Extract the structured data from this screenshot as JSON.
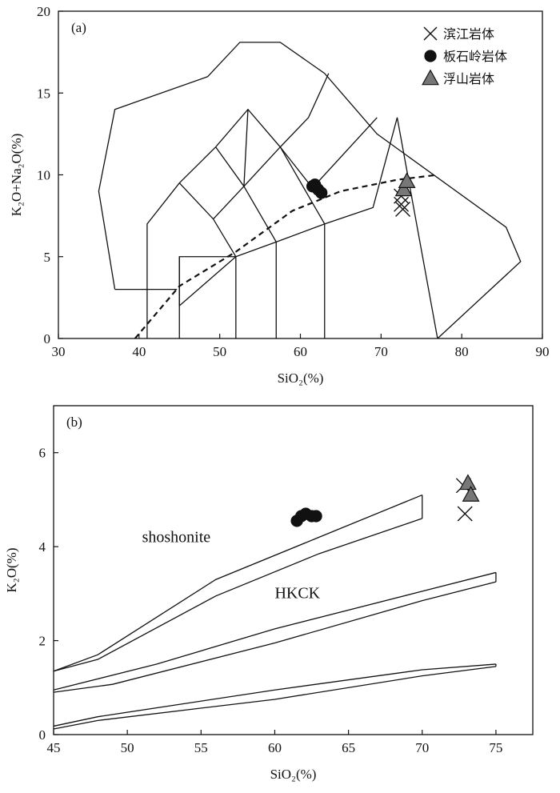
{
  "chart_data": [
    {
      "type": "scatter",
      "panel_label": "(a)",
      "xlabel": "SiO₂(%)",
      "ylabel": "K₂O+Na₂O(%)",
      "xlim": [
        30,
        90
      ],
      "ylim": [
        0,
        20
      ],
      "xticks": [
        30,
        40,
        50,
        60,
        70,
        80,
        90
      ],
      "yticks": [
        0,
        5,
        10,
        15,
        20
      ],
      "legend": {
        "placement": "top-right",
        "entries": [
          {
            "name": "滨江岩体",
            "marker": "cross"
          },
          {
            "name": "板石岭岩体",
            "marker": "circle"
          },
          {
            "name": "浮山岩体",
            "marker": "triangle"
          }
        ]
      },
      "series": [
        {
          "name": "滨江岩体",
          "marker": "cross",
          "points": [
            [
              72.5,
              8.7
            ],
            [
              72.5,
              8.2
            ],
            [
              72.7,
              7.9
            ]
          ]
        },
        {
          "name": "板石岭岩体",
          "marker": "circle",
          "points": [
            [
              61.5,
              9.3
            ],
            [
              61.8,
              9.4
            ],
            [
              62.2,
              9.1
            ],
            [
              62.6,
              8.9
            ]
          ]
        },
        {
          "name": "浮山岩体",
          "marker": "triangle",
          "points": [
            [
              72.8,
              9.1
            ],
            [
              73.2,
              9.6
            ]
          ]
        }
      ],
      "boundary_lines": [
        [
          [
            37,
            3
          ],
          [
            35,
            9
          ],
          [
            37,
            14
          ],
          [
            48.5,
            16
          ],
          [
            52.5,
            18.1
          ],
          [
            57.5,
            18.1
          ],
          [
            63,
            16.2
          ],
          [
            69.5,
            12.5
          ],
          [
            85.5,
            6.8
          ],
          [
            87.3,
            4.7
          ],
          [
            77,
            0
          ]
        ],
        [
          [
            44.7,
            3
          ],
          [
            37,
            3
          ]
        ],
        [
          [
            41,
            0
          ],
          [
            41,
            7
          ],
          [
            45,
            9.5
          ],
          [
            49.5,
            11.7
          ],
          [
            53.5,
            14
          ],
          [
            57.5,
            11.7
          ],
          [
            61,
            13.5
          ],
          [
            63.5,
            16.2
          ]
        ],
        [
          [
            45,
            0
          ],
          [
            45,
            5
          ],
          [
            52,
            5
          ],
          [
            57,
            5.9
          ],
          [
            63,
            7
          ],
          [
            69,
            8
          ],
          [
            72,
            13.5
          ],
          [
            77,
            0
          ]
        ],
        [
          [
            45,
            2
          ],
          [
            45,
            5
          ]
        ],
        [
          [
            52,
            0
          ],
          [
            52,
            5
          ],
          [
            49.2,
            7.3
          ],
          [
            45,
            9.5
          ]
        ],
        [
          [
            57,
            0
          ],
          [
            57,
            5.9
          ],
          [
            53,
            9.3
          ],
          [
            49.2,
            7.3
          ]
        ],
        [
          [
            63,
            0
          ],
          [
            63,
            7
          ],
          [
            57.5,
            11.7
          ],
          [
            53,
            9.3
          ],
          [
            49.5,
            11.7
          ]
        ],
        [
          [
            53.5,
            14
          ],
          [
            53,
            9.3
          ]
        ],
        [
          [
            57.5,
            11.7
          ],
          [
            61.5,
            9.2
          ],
          [
            69.5,
            13.5
          ]
        ],
        [
          [
            45,
            2
          ],
          [
            52,
            5
          ]
        ]
      ],
      "dashed_curve": [
        [
          39.5,
          0
        ],
        [
          45,
          3.2
        ],
        [
          52,
          5.3
        ],
        [
          59,
          7.8
        ],
        [
          65,
          9
        ],
        [
          72,
          9.7
        ],
        [
          77,
          10
        ]
      ]
    },
    {
      "type": "scatter",
      "panel_label": "(b)",
      "xlabel": "SiO₂(%)",
      "ylabel": "K₂O(%)",
      "xlim": [
        45,
        77.5
      ],
      "ylim": [
        0,
        7
      ],
      "xticks": [
        45,
        50,
        55,
        60,
        65,
        70,
        75
      ],
      "yticks": [
        0,
        2,
        4,
        6
      ],
      "region_labels": [
        {
          "text": "shoshonite",
          "x": 51,
          "y": 4.1
        },
        {
          "text": "HKCK",
          "x": 60,
          "y": 2.9
        }
      ],
      "series": [
        {
          "name": "滨江岩体",
          "marker": "cross",
          "points": [
            [
              72.8,
              5.3
            ],
            [
              72.9,
              4.7
            ]
          ]
        },
        {
          "name": "板石岭岩体",
          "marker": "circle",
          "points": [
            [
              61.5,
              4.55
            ],
            [
              61.8,
              4.65
            ],
            [
              62.1,
              4.7
            ],
            [
              62.5,
              4.65
            ],
            [
              62.8,
              4.65
            ]
          ]
        },
        {
          "name": "浮山岩体",
          "marker": "triangle",
          "points": [
            [
              73.1,
              5.35
            ],
            [
              73.3,
              5.1
            ]
          ]
        }
      ],
      "band_lines": [
        [
          [
            45,
            1.35
          ],
          [
            48,
            1.7
          ],
          [
            56,
            3.3
          ],
          [
            63,
            4.2
          ],
          [
            70,
            5.1
          ]
        ],
        [
          [
            45,
            1.35
          ],
          [
            48,
            1.6
          ],
          [
            56,
            2.95
          ],
          [
            63,
            3.85
          ],
          [
            70,
            4.6
          ]
        ],
        [
          [
            70,
            5.1
          ],
          [
            70,
            4.6
          ]
        ],
        [
          [
            45,
            0.95
          ],
          [
            52,
            1.5
          ],
          [
            60,
            2.25
          ],
          [
            70,
            3.05
          ],
          [
            75,
            3.45
          ]
        ],
        [
          [
            45,
            0.9
          ],
          [
            49,
            1.07
          ],
          [
            60,
            1.95
          ],
          [
            70,
            2.85
          ],
          [
            75,
            3.25
          ]
        ],
        [
          [
            75,
            3.45
          ],
          [
            75,
            3.25
          ]
        ],
        [
          [
            45,
            0.18
          ],
          [
            48,
            0.38
          ],
          [
            60,
            0.95
          ],
          [
            70,
            1.38
          ],
          [
            75,
            1.5
          ]
        ],
        [
          [
            45,
            0.12
          ],
          [
            48,
            0.3
          ],
          [
            60,
            0.75
          ],
          [
            70,
            1.25
          ],
          [
            75,
            1.45
          ]
        ],
        [
          [
            75,
            1.5
          ],
          [
            75,
            1.45
          ]
        ]
      ]
    }
  ]
}
